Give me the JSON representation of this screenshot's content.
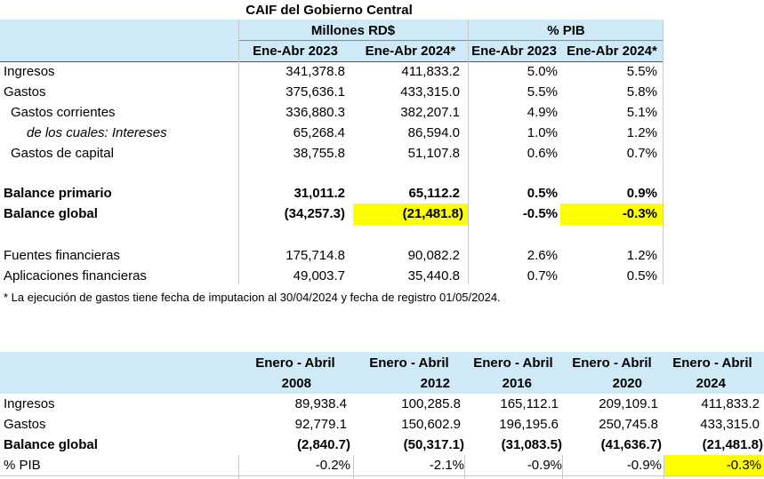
{
  "table1": {
    "title": "CAIF del Gobierno Central",
    "group_headers": {
      "millones": "Millones RD$",
      "pib": "% PIB"
    },
    "columns": [
      "Ene-Abr 2023",
      "Ene-Abr 2024*",
      "Ene-Abr 2023",
      "Ene-Abr 2024*"
    ],
    "rows": [
      {
        "label": "Ingresos",
        "values": [
          "341,378.8",
          "411,833.2",
          "5.0%",
          "5.5%"
        ]
      },
      {
        "label": "Gastos",
        "values": [
          "375,636.1",
          "433,315.0",
          "5.5%",
          "5.8%"
        ]
      },
      {
        "label": "Gastos corrientes",
        "values": [
          "336,880.3",
          "382,207.1",
          "4.9%",
          "5.1%"
        ]
      },
      {
        "label": "de los cuales: Intereses",
        "values": [
          "65,268.4",
          "86,594.0",
          "1.0%",
          "1.2%"
        ]
      },
      {
        "label": "Gastos de capital",
        "values": [
          "38,755.8",
          "51,107.8",
          "0.6%",
          "0.7%"
        ]
      },
      {
        "label": "Balance primario",
        "values": [
          "31,011.2",
          "65,112.2",
          "0.5%",
          "0.9%"
        ]
      },
      {
        "label": "Balance global",
        "values": [
          "(34,257.3)",
          "(21,481.8)",
          "-0.5%",
          "-0.3%"
        ]
      },
      {
        "label": "Fuentes financieras",
        "values": [
          "175,714.8",
          "90,082.2",
          "2.6%",
          "1.2%"
        ]
      },
      {
        "label": "Aplicaciones financieras",
        "values": [
          "49,003.7",
          "35,440.8",
          "0.7%",
          "0.5%"
        ]
      }
    ],
    "footnote": "* La ejecución de gastos tiene fecha de imputacion al 30/04/2024 y fecha de registro 01/05/2024.",
    "highlight_color": "#ffff00"
  },
  "table2": {
    "header_line1": [
      "Enero - Abril",
      "Enero - Abril",
      "Enero - Abril",
      "Enero - Abril",
      "Enero - Abril"
    ],
    "header_line2": [
      "2008",
      "2012",
      "2016",
      "2020",
      "2024"
    ],
    "rows": [
      {
        "label": "Ingresos",
        "values": [
          "89,938.4",
          "100,285.8",
          "165,112.1",
          "209,109.1",
          "411,833.2"
        ]
      },
      {
        "label": "Gastos",
        "values": [
          "92,779.1",
          "150,602.9",
          "196,195.6",
          "250,745.8",
          "433,315.0"
        ]
      },
      {
        "label": "Balance global",
        "values": [
          "(2,840.7)",
          "(50,317.1)",
          "(31,083.5)",
          "(41,636.7)",
          "(21,481.8)"
        ]
      },
      {
        "label": "% PIB",
        "values": [
          "-0.2%",
          "-2.1%",
          "-0.9%",
          "-0.9%",
          "-0.3%"
        ]
      }
    ],
    "header_color": "#cfeaf6"
  }
}
